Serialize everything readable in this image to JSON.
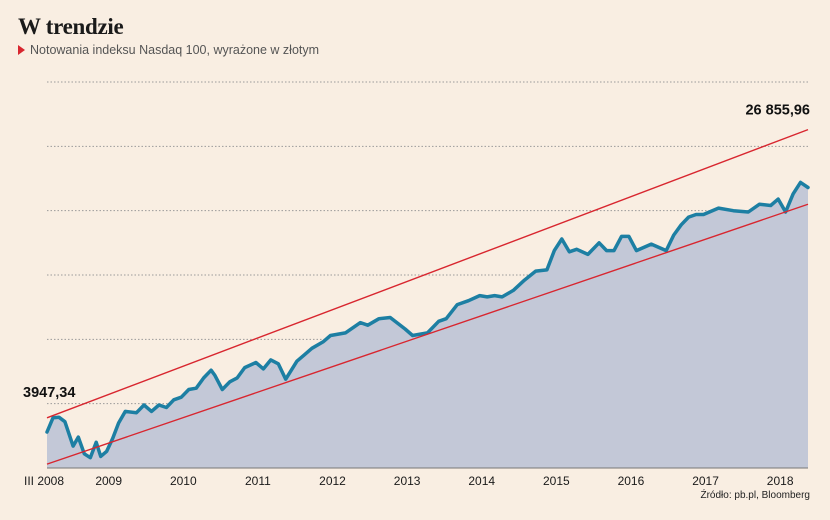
{
  "header": {
    "title": "W trendzie",
    "subtitle": "Notowania indeksu Nasdaq 100, wyrażone w złotym"
  },
  "source": "Źródło: pb.pl, Bloomberg",
  "colors": {
    "background": "#f9eee2",
    "line": "#1d7fa3",
    "area": "#c3c8d7",
    "trend": "#d8262f",
    "grid": "#9a9a9a"
  },
  "chart_data": {
    "type": "area",
    "title": "W trendzie",
    "subtitle": "Notowania indeksu Nasdaq 100, wyrażone w złotym",
    "xlabel": "",
    "ylabel": "",
    "x_tick_labels": [
      "III 2008",
      "2009",
      "2010",
      "2011",
      "2012",
      "2013",
      "2014",
      "2015",
      "2016",
      "2017",
      "2018"
    ],
    "x_tick_values": [
      2008.2,
      2009.0,
      2010.0,
      2011.0,
      2012.0,
      2013.0,
      2014.0,
      2015.0,
      2016.0,
      2017.0,
      2018.0
    ],
    "xlim": [
      2008.2,
      2018.4
    ],
    "ylim": [
      0,
      30000
    ],
    "grid": true,
    "gridlines_y": [
      5000,
      10000,
      15000,
      20000,
      25000,
      30000
    ],
    "annotations": [
      {
        "text": "3947,34",
        "x": 2008.2,
        "y": 3947.34
      },
      {
        "text": "26 855,96",
        "x": 2018.4,
        "y": 26855.96
      }
    ],
    "series": [
      {
        "x": [
          2008.2,
          2008.28,
          2008.36,
          2008.44,
          2008.55,
          2008.62,
          2008.7,
          2008.78,
          2008.86,
          2008.92,
          2009.0,
          2009.08,
          2009.16,
          2009.25,
          2009.4,
          2009.5,
          2009.6,
          2009.7,
          2009.8,
          2009.9,
          2010.0,
          2010.1,
          2010.2,
          2010.3,
          2010.4,
          2010.45,
          2010.55,
          2010.65,
          2010.75,
          2010.85,
          2011.0,
          2011.1,
          2011.2,
          2011.3,
          2011.4,
          2011.55,
          2011.65,
          2011.75,
          2011.9,
          2012.0,
          2012.2,
          2012.4,
          2012.5,
          2012.65,
          2012.8,
          2013.0,
          2013.1,
          2013.3,
          2013.45,
          2013.55,
          2013.7,
          2013.85,
          2014.0,
          2014.1,
          2014.2,
          2014.3,
          2014.45,
          2014.6,
          2014.75,
          2014.9,
          2015.0,
          2015.1,
          2015.2,
          2015.3,
          2015.45,
          2015.6,
          2015.7,
          2015.8,
          2015.9,
          2016.0,
          2016.1,
          2016.3,
          2016.5,
          2016.6,
          2016.7,
          2016.8,
          2016.9,
          2017.0,
          2017.2,
          2017.4,
          2017.6,
          2017.75,
          2017.9,
          2018.0,
          2018.1,
          2018.2,
          2018.3,
          2018.4
        ],
        "y": [
          2800,
          3900,
          3950,
          3600,
          1700,
          2400,
          1100,
          800,
          2000,
          900,
          1300,
          2300,
          3500,
          4400,
          4300,
          4900,
          4400,
          4900,
          4700,
          5300,
          5500,
          6100,
          6200,
          7000,
          7600,
          7200,
          6100,
          6700,
          7000,
          7800,
          8200,
          7700,
          8400,
          8100,
          6900,
          8300,
          8800,
          9300,
          9800,
          10300,
          10500,
          11300,
          11100,
          11600,
          11700,
          10800,
          10300,
          10500,
          11400,
          11600,
          12700,
          13000,
          13400,
          13300,
          13400,
          13300,
          13800,
          14600,
          15300,
          15400,
          16900,
          17800,
          16800,
          17000,
          16600,
          17500,
          16900,
          16900,
          18000,
          18000,
          16900,
          17400,
          16900,
          18100,
          18900,
          19500,
          19700,
          19700,
          20200,
          20000,
          19900,
          20500,
          20400,
          20900,
          19900,
          21300,
          22200,
          21800
        ]
      }
    ],
    "trend_lines": [
      {
        "name": "upper",
        "x": [
          2008.2,
          2018.4
        ],
        "y": [
          3900,
          26300
        ]
      },
      {
        "name": "lower",
        "x": [
          2008.2,
          2018.4
        ],
        "y": [
          300,
          20500
        ]
      }
    ]
  }
}
